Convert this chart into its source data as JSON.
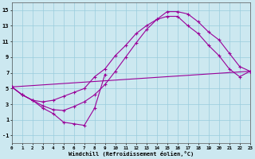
{
  "xlabel": "Windchill (Refroidissement éolien,°C)",
  "bg_color": "#cce8f0",
  "grid_color": "#99ccdd",
  "line_color": "#990099",
  "xlim": [
    0,
    23
  ],
  "ylim": [
    -2,
    16
  ],
  "xtick_vals": [
    0,
    1,
    2,
    3,
    4,
    5,
    6,
    7,
    8,
    9,
    10,
    11,
    12,
    13,
    14,
    15,
    16,
    17,
    18,
    19,
    20,
    21,
    22,
    23
  ],
  "ytick_vals": [
    -1,
    1,
    3,
    5,
    7,
    9,
    11,
    13,
    15
  ],
  "curve1_x": [
    0,
    1,
    2,
    3,
    4,
    5,
    6,
    7,
    8,
    9,
    10,
    11,
    12,
    13,
    14,
    15,
    16,
    17,
    18,
    19,
    20,
    21,
    22,
    23
  ],
  "curve1_y": [
    5.2,
    4.2,
    3.5,
    3.3,
    3.5,
    4.0,
    4.5,
    5.0,
    6.5,
    7.5,
    9.2,
    10.5,
    12.0,
    13.0,
    13.8,
    14.2,
    14.2,
    13.0,
    12.0,
    10.5,
    9.2,
    7.5,
    6.5,
    7.2
  ],
  "curve2_x": [
    0,
    1,
    2,
    3,
    4,
    5,
    6,
    7,
    8,
    9,
    10,
    11,
    12,
    13,
    14,
    15,
    16,
    17,
    18,
    19,
    20,
    21,
    22,
    23
  ],
  "curve2_y": [
    5.2,
    4.2,
    3.5,
    2.8,
    2.3,
    2.2,
    2.7,
    3.3,
    4.2,
    5.5,
    7.2,
    9.0,
    10.8,
    12.5,
    13.8,
    14.8,
    14.8,
    14.5,
    13.5,
    12.2,
    11.2,
    9.5,
    7.8,
    7.2
  ],
  "curve3_x": [
    0,
    1,
    2,
    3,
    4,
    5,
    6,
    7,
    8,
    9
  ],
  "curve3_y": [
    5.2,
    4.2,
    3.5,
    2.5,
    1.8,
    0.7,
    0.5,
    0.3,
    2.5,
    6.8
  ],
  "curve4_x": [
    0,
    23
  ],
  "curve4_y": [
    5.2,
    7.2
  ]
}
